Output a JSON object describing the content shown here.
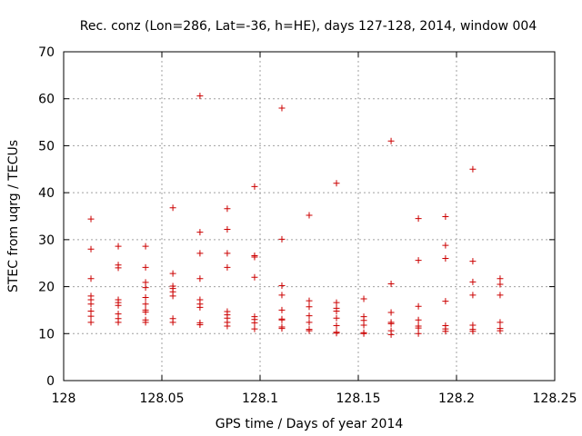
{
  "chart_data": {
    "type": "scatter",
    "title": "Rec. conz (Lon=286, Lat=-36, h=HE), days 127-128, 2014, window 004",
    "xlabel": "GPS time / Days of year 2014",
    "ylabel": "STEC from uqrg / TECUs",
    "xlim": [
      128,
      128.25
    ],
    "ylim": [
      0,
      70
    ],
    "xticks": [
      "128",
      "128.05",
      "128.1",
      "128.15",
      "128.2",
      "128.25"
    ],
    "yticks": [
      "0",
      "10",
      "20",
      "30",
      "40",
      "50",
      "60",
      "70"
    ],
    "grid": true,
    "marker": "+",
    "color": "#cc0000",
    "series": [
      {
        "name": "STEC",
        "points": [
          [
            128.0139,
            34.4
          ],
          [
            128.0139,
            28.0
          ],
          [
            128.0139,
            21.7
          ],
          [
            128.0139,
            18.0
          ],
          [
            128.0139,
            17.2
          ],
          [
            128.0139,
            16.3
          ],
          [
            128.0139,
            14.8
          ],
          [
            128.0139,
            13.7
          ],
          [
            128.0139,
            12.4
          ],
          [
            128.0278,
            28.6
          ],
          [
            128.0278,
            24.6
          ],
          [
            128.0278,
            24.0
          ],
          [
            128.0278,
            17.2
          ],
          [
            128.0278,
            16.6
          ],
          [
            128.0278,
            16.0
          ],
          [
            128.0278,
            14.2
          ],
          [
            128.0278,
            13.2
          ],
          [
            128.0278,
            12.4
          ],
          [
            128.0417,
            28.6
          ],
          [
            128.0417,
            24.1
          ],
          [
            128.0417,
            20.9
          ],
          [
            128.0417,
            19.8
          ],
          [
            128.0417,
            17.7
          ],
          [
            128.0417,
            16.3
          ],
          [
            128.0417,
            15.0
          ],
          [
            128.0417,
            14.6
          ],
          [
            128.0417,
            12.9
          ],
          [
            128.0417,
            12.4
          ],
          [
            128.0556,
            36.8
          ],
          [
            128.0556,
            22.8
          ],
          [
            128.0556,
            20.1
          ],
          [
            128.0556,
            19.6
          ],
          [
            128.0556,
            18.9
          ],
          [
            128.0556,
            18.0
          ],
          [
            128.0556,
            13.2
          ],
          [
            128.0556,
            12.4
          ],
          [
            128.0694,
            60.6
          ],
          [
            128.0694,
            31.6
          ],
          [
            128.0694,
            27.1
          ],
          [
            128.0694,
            21.7
          ],
          [
            128.0694,
            17.2
          ],
          [
            128.0694,
            16.3
          ],
          [
            128.0694,
            15.6
          ],
          [
            128.0694,
            12.3
          ],
          [
            128.0694,
            11.9
          ],
          [
            128.0833,
            36.6
          ],
          [
            128.0833,
            32.2
          ],
          [
            128.0833,
            27.1
          ],
          [
            128.0833,
            24.1
          ],
          [
            128.0833,
            14.7
          ],
          [
            128.0833,
            14.0
          ],
          [
            128.0833,
            13.3
          ],
          [
            128.0833,
            12.4
          ],
          [
            128.0833,
            11.6
          ],
          [
            128.0972,
            41.3
          ],
          [
            128.0972,
            26.6
          ],
          [
            128.0972,
            26.3
          ],
          [
            128.0972,
            22.0
          ],
          [
            128.0972,
            13.6
          ],
          [
            128.0972,
            13.0
          ],
          [
            128.0972,
            12.3
          ],
          [
            128.0972,
            11.0
          ],
          [
            128.1111,
            58.0
          ],
          [
            128.1111,
            30.1
          ],
          [
            128.1111,
            20.2
          ],
          [
            128.1111,
            18.2
          ],
          [
            128.1111,
            15.0
          ],
          [
            128.1111,
            13.1
          ],
          [
            128.1111,
            12.9
          ],
          [
            128.1111,
            11.4
          ],
          [
            128.1111,
            11.1
          ],
          [
            128.125,
            35.2
          ],
          [
            128.125,
            17.0
          ],
          [
            128.125,
            15.7
          ],
          [
            128.125,
            13.8
          ],
          [
            128.125,
            12.4
          ],
          [
            128.125,
            10.9
          ],
          [
            128.125,
            10.6
          ],
          [
            128.1389,
            42.0
          ],
          [
            128.1389,
            16.6
          ],
          [
            128.1389,
            15.4
          ],
          [
            128.1389,
            14.8
          ],
          [
            128.1389,
            13.3
          ],
          [
            128.1389,
            11.7
          ],
          [
            128.1389,
            10.3
          ],
          [
            128.1389,
            10.1
          ],
          [
            128.1528,
            17.4
          ],
          [
            128.1528,
            13.6
          ],
          [
            128.1528,
            12.8
          ],
          [
            128.1528,
            11.8
          ],
          [
            128.1528,
            10.2
          ],
          [
            128.1528,
            10.0
          ],
          [
            128.1667,
            51.0
          ],
          [
            128.1667,
            20.6
          ],
          [
            128.1667,
            14.5
          ],
          [
            128.1667,
            12.4
          ],
          [
            128.1667,
            12.1
          ],
          [
            128.1667,
            10.6
          ],
          [
            128.1667,
            9.8
          ],
          [
            128.1806,
            34.5
          ],
          [
            128.1806,
            25.6
          ],
          [
            128.1806,
            15.8
          ],
          [
            128.1806,
            12.9
          ],
          [
            128.1806,
            11.6
          ],
          [
            128.1806,
            11.2
          ],
          [
            128.1806,
            10.0
          ],
          [
            128.1944,
            34.9
          ],
          [
            128.1944,
            28.8
          ],
          [
            128.1944,
            26.0
          ],
          [
            128.1944,
            16.9
          ],
          [
            128.1944,
            11.7
          ],
          [
            128.1944,
            11.0
          ],
          [
            128.1944,
            10.5
          ],
          [
            128.2083,
            45.0
          ],
          [
            128.2083,
            25.4
          ],
          [
            128.2083,
            21.0
          ],
          [
            128.2083,
            18.2
          ],
          [
            128.2083,
            11.8
          ],
          [
            128.2083,
            10.9
          ],
          [
            128.2083,
            10.5
          ],
          [
            128.2222,
            21.7
          ],
          [
            128.2222,
            20.5
          ],
          [
            128.2222,
            18.2
          ],
          [
            128.2222,
            12.4
          ],
          [
            128.2222,
            11.1
          ],
          [
            128.2222,
            10.6
          ]
        ]
      }
    ]
  }
}
